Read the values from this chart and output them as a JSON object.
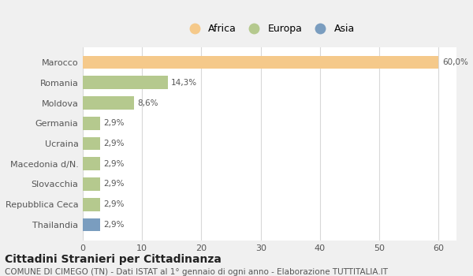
{
  "categories": [
    "Marocco",
    "Romania",
    "Moldova",
    "Germania",
    "Ucraina",
    "Macedonia d/N.",
    "Slovacchia",
    "Repubblica Ceca",
    "Thailandia"
  ],
  "values": [
    60.0,
    14.3,
    8.6,
    2.9,
    2.9,
    2.9,
    2.9,
    2.9,
    2.9
  ],
  "labels": [
    "60,0%",
    "14,3%",
    "8,6%",
    "2,9%",
    "2,9%",
    "2,9%",
    "2,9%",
    "2,9%",
    "2,9%"
  ],
  "colors": [
    "#f5c98a",
    "#b5c98e",
    "#b5c98e",
    "#b5c98e",
    "#b5c98e",
    "#b5c98e",
    "#b5c98e",
    "#b5c98e",
    "#7a9dbf"
  ],
  "legend_labels": [
    "Africa",
    "Europa",
    "Asia"
  ],
  "legend_colors": [
    "#f5c98a",
    "#b5c98e",
    "#7a9dbf"
  ],
  "xlim": [
    0,
    63
  ],
  "xticks": [
    0,
    10,
    20,
    30,
    40,
    50,
    60
  ],
  "title": "Cittadini Stranieri per Cittadinanza",
  "subtitle": "COMUNE DI CIMEGO (TN) - Dati ISTAT al 1° gennaio di ogni anno - Elaborazione TUTTITALIA.IT",
  "outer_bg_color": "#f0f0f0",
  "plot_bg_color": "#ffffff",
  "grid_color": "#d8d8d8",
  "title_fontsize": 10,
  "subtitle_fontsize": 7.5,
  "label_fontsize": 7.5,
  "tick_fontsize": 8,
  "legend_fontsize": 9
}
